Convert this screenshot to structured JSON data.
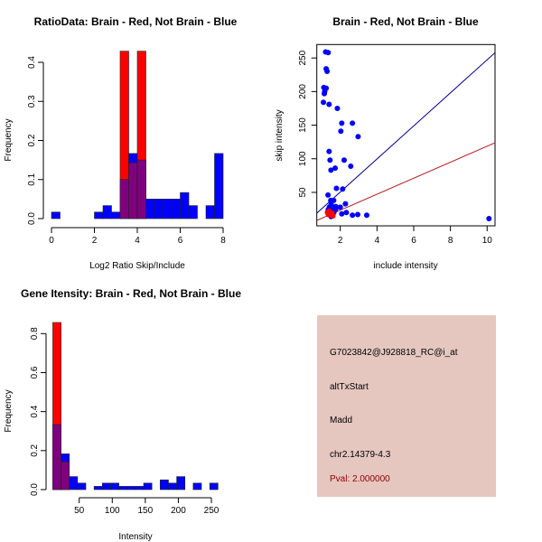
{
  "colors": {
    "red": "#ff0000",
    "blue": "#0000ff",
    "overlap": "#7f007f",
    "panel": "#e5c7c0",
    "pval": "#8b0000",
    "blue_line": "#00008b",
    "red_line": "#b22222"
  },
  "chart_data": [
    {
      "type": "bar",
      "title": "RatioData: Brain - Red, Not Brain - Blue",
      "xlabel": "Log2 Ratio Skip/Include",
      "ylabel": "Frequency",
      "xlim": [
        0,
        8
      ],
      "ylim": [
        0,
        0.4
      ],
      "xticks": [
        "0",
        "2",
        "4",
        "6",
        "8"
      ],
      "yticks": [
        "0.0",
        "0.1",
        "0.2",
        "0.3",
        "0.4"
      ],
      "bin_start": 0,
      "bin_width": 0.4,
      "series": [
        {
          "name": "Not Brain",
          "color": "blue",
          "values": [
            0.0167,
            0,
            0,
            0,
            0,
            0.0167,
            0.0333,
            0.0167,
            0.1,
            0.1667,
            0.15,
            0.05,
            0.05,
            0.05,
            0.05,
            0.0667,
            0.0333,
            0,
            0.0333,
            0.1667
          ]
        },
        {
          "name": "Brain",
          "color": "red",
          "values": [
            0,
            0,
            0,
            0,
            0,
            0,
            0,
            0,
            0.4286,
            0.1429,
            0.4286,
            0,
            0,
            0,
            0,
            0,
            0,
            0,
            0,
            0
          ]
        }
      ]
    },
    {
      "type": "scatter",
      "title": "Brain - Red, Not Brain - Blue",
      "xlabel": "include intensity",
      "ylabel": "skip intensity",
      "xlim": [
        0.72,
        10.43
      ],
      "ylim": [
        0.2,
        270
      ],
      "xticks": [
        "2",
        "4",
        "6",
        "8",
        "10"
      ],
      "yticks": [
        "50",
        "100",
        "150",
        "200",
        "250"
      ],
      "series": [
        {
          "name": "Not Brain",
          "color": "blue",
          "points": [
            [
              1.2,
              259
            ],
            [
              1.34,
              258
            ],
            [
              1.23,
              234
            ],
            [
              1.28,
              230
            ],
            [
              1.1,
              206
            ],
            [
              1.23,
              205
            ],
            [
              1.13,
              197
            ],
            [
              1.15,
              200
            ],
            [
              1.08,
              184
            ],
            [
              1.39,
              181
            ],
            [
              1.84,
              175
            ],
            [
              2.08,
              153
            ],
            [
              2.66,
              153
            ],
            [
              2.03,
              141
            ],
            [
              2.97,
              133
            ],
            [
              1.39,
              111
            ],
            [
              1.44,
              98
            ],
            [
              2.21,
              98
            ],
            [
              1.72,
              86
            ],
            [
              1.49,
              83
            ],
            [
              2.57,
              89
            ],
            [
              1.79,
              56
            ],
            [
              2.13,
              55
            ],
            [
              1.33,
              46
            ],
            [
              1.48,
              38
            ],
            [
              1.64,
              38
            ],
            [
              2.28,
              33
            ],
            [
              2.0,
              28
            ],
            [
              1.75,
              29
            ],
            [
              1.5,
              32
            ],
            [
              1.34,
              24
            ],
            [
              1.59,
              25
            ],
            [
              1.75,
              25
            ],
            [
              1.65,
              20
            ],
            [
              1.4,
              28
            ],
            [
              2.08,
              18
            ],
            [
              2.33,
              20
            ],
            [
              2.66,
              16
            ],
            [
              2.95,
              17
            ],
            [
              3.44,
              16
            ],
            [
              1.5,
              14
            ],
            [
              10.1,
              11
            ]
          ]
        },
        {
          "name": "Brain",
          "color": "red",
          "points": [
            [
              1.3,
              20
            ],
            [
              1.35,
              17
            ],
            [
              1.4,
              22
            ],
            [
              1.45,
              18
            ],
            [
              1.5,
              16
            ],
            [
              1.55,
              19
            ],
            [
              1.6,
              15
            ]
          ]
        }
      ],
      "lines": [
        {
          "name": "Not Brain fit",
          "color": "blue_line",
          "slope": 24.6,
          "intercept": 1.3
        },
        {
          "name": "Brain fit",
          "color": "red_line",
          "slope": 11.9,
          "intercept": -0.3
        }
      ]
    },
    {
      "type": "bar",
      "title": "Gene Itensity: Brain - Red, Not Brain - Blue",
      "xlabel": "Intensity",
      "ylabel": "Frequency",
      "xlim": [
        50,
        250
      ],
      "ylim": [
        0,
        0.8
      ],
      "xticks": [
        "50",
        "100",
        "150",
        "200",
        "250"
      ],
      "yticks": [
        "0.0",
        "0.2",
        "0.4",
        "0.6",
        "0.8"
      ],
      "bin_start": 10,
      "bin_width": 12.5,
      "series": [
        {
          "name": "Not Brain",
          "color": "blue",
          "values": [
            0.3333,
            0.1833,
            0.0667,
            0.0333,
            0,
            0.0167,
            0.0333,
            0.0333,
            0.0167,
            0.0167,
            0.0167,
            0.0333,
            0,
            0.05,
            0.0333,
            0.0667,
            0,
            0.0333,
            0,
            0.0333
          ]
        },
        {
          "name": "Brain",
          "color": "red",
          "values": [
            0.8571,
            0.1429,
            0,
            0,
            0,
            0,
            0,
            0,
            0,
            0,
            0,
            0,
            0,
            0,
            0,
            0,
            0,
            0,
            0,
            0
          ]
        }
      ]
    }
  ],
  "info_panel": {
    "probe": "G7023842@J928818_RC@i_at",
    "event_type": "altTxStart",
    "gene": "Madd",
    "location": "chr2.14379-4.3",
    "pval": "Pval: 2.000000"
  }
}
